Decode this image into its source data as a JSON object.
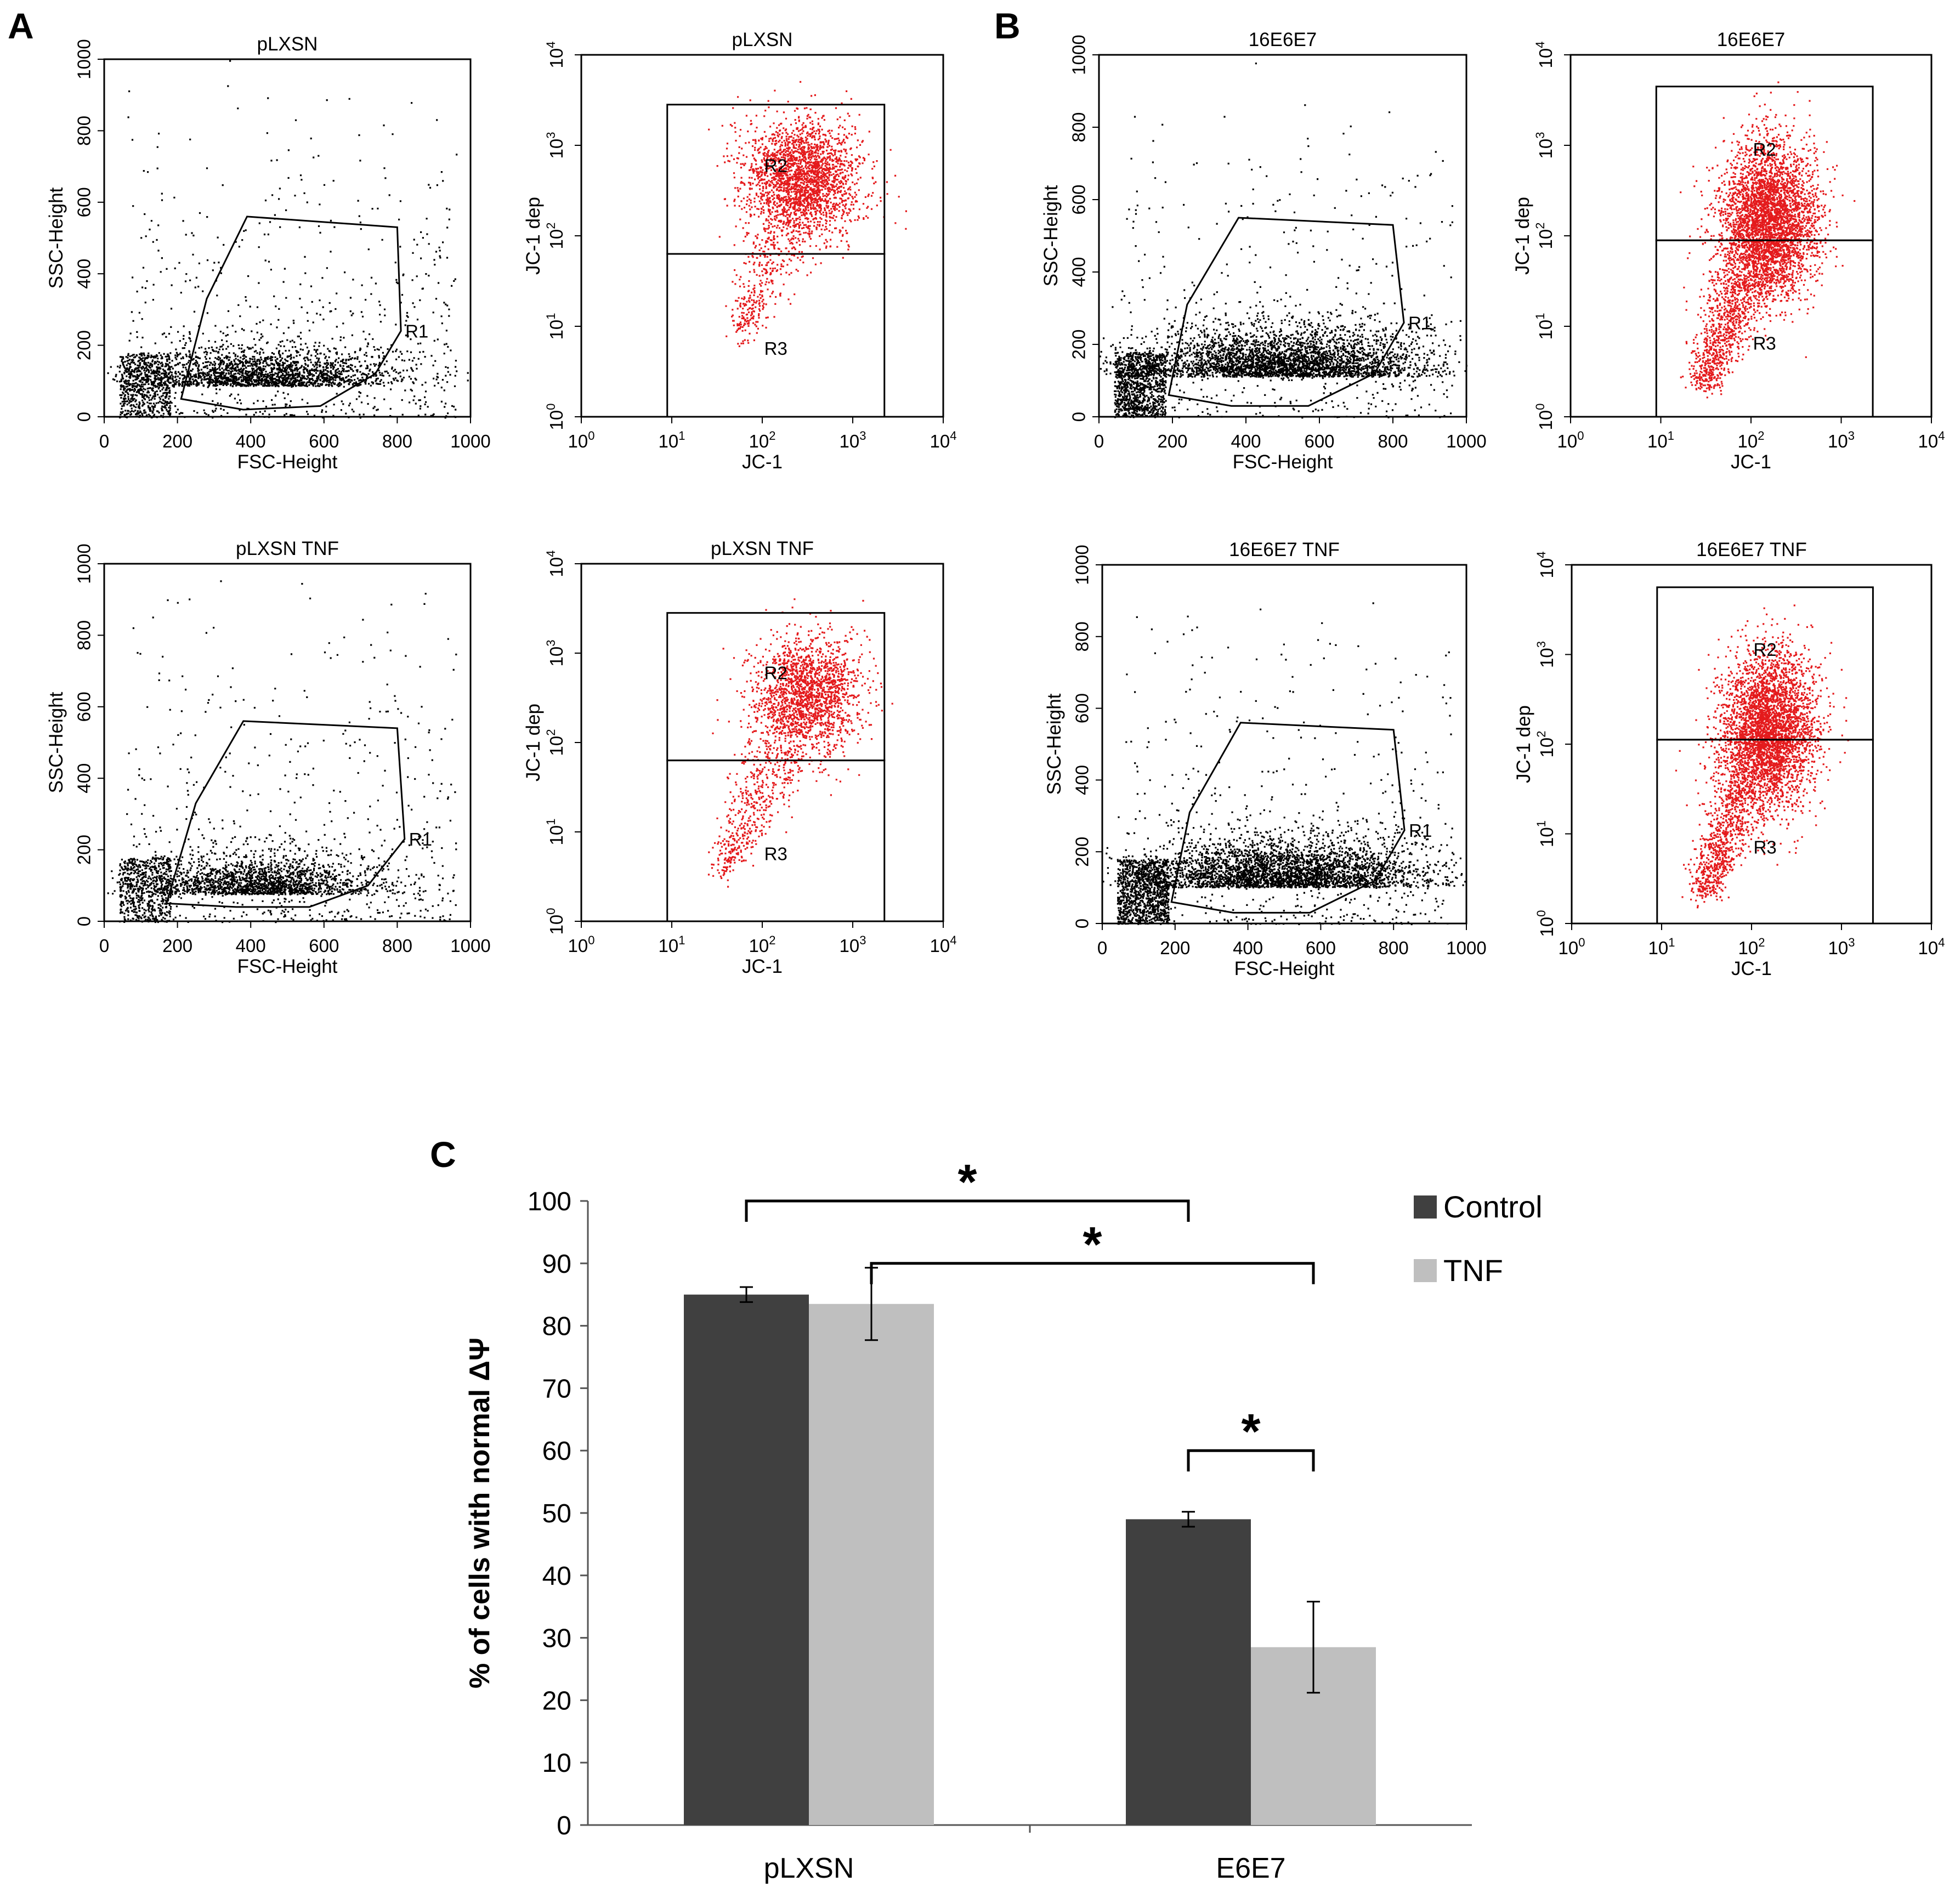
{
  "panels": {
    "A": {
      "letter": "A"
    },
    "B": {
      "letter": "B"
    },
    "C": {
      "letter": "C"
    }
  },
  "colors": {
    "scatter_points": "#000000",
    "jc1_points": "#e41a1c",
    "control_bar": "#404040",
    "tnf_bar": "#bfbfbf",
    "axis": "#000000"
  },
  "chart_data": [
    {
      "id": "pLXSN-fsc",
      "panel": "A",
      "type": "scatter",
      "title": "pLXSN",
      "xlabel": "FSC-Height",
      "ylabel": "SSC-Height",
      "xlim": [
        0,
        1000
      ],
      "ylim": [
        0,
        1000
      ],
      "xticks": [
        "0",
        "200",
        "400",
        "600",
        "800",
        "1000"
      ],
      "yticks": [
        "0",
        "200",
        "400",
        "600",
        "800",
        "1000"
      ],
      "gate": {
        "name": "R1",
        "polygon": [
          [
            210,
            50
          ],
          [
            280,
            330
          ],
          [
            390,
            560
          ],
          [
            800,
            530
          ],
          [
            810,
            240
          ],
          [
            740,
            120
          ],
          [
            590,
            30
          ],
          [
            380,
            20
          ]
        ]
      },
      "cloud": {
        "x_center": 430,
        "y_center": 110,
        "x_spread": 170,
        "y_spread": 45,
        "dense_count": 2600,
        "scatter_count": 650
      }
    },
    {
      "id": "pLXSN-jc1",
      "panel": "A",
      "type": "scatter",
      "title": "pLXSN",
      "xlabel": "JC-1",
      "ylabel": "JC-1 dep",
      "xlim": [
        0,
        4
      ],
      "ylim": [
        0,
        4
      ],
      "xticks": [
        "10^0",
        "10^1",
        "10^2",
        "10^3",
        "10^4"
      ],
      "yticks": [
        "10^0",
        "10^1",
        "10^2",
        "10^3",
        "10^4"
      ],
      "regions": [
        {
          "name": "R2",
          "x": [
            0.95,
            3.35
          ],
          "y": [
            1.8,
            3.45
          ]
        },
        {
          "name": "R3",
          "x": [
            0.95,
            3.35
          ],
          "y": [
            0,
            1.8
          ]
        }
      ],
      "cloud": {
        "x_center": 2.45,
        "y_center": 2.65,
        "x_spread": 0.32,
        "y_spread": 0.32,
        "tail_to": [
          1.75,
          0.9
        ],
        "dense_count": 2200,
        "tail_count": 500
      }
    },
    {
      "id": "pLXSN-TNF-fsc",
      "panel": "A",
      "type": "scatter",
      "title": "pLXSN TNF",
      "xlabel": "FSC-Height",
      "ylabel": "SSC-Height",
      "xlim": [
        0,
        1000
      ],
      "ylim": [
        0,
        1000
      ],
      "xticks": [
        "0",
        "200",
        "400",
        "600",
        "800",
        "1000"
      ],
      "yticks": [
        "0",
        "200",
        "400",
        "600",
        "800",
        "1000"
      ],
      "gate": {
        "name": "R1",
        "polygon": [
          [
            170,
            50
          ],
          [
            250,
            330
          ],
          [
            380,
            560
          ],
          [
            800,
            540
          ],
          [
            820,
            230
          ],
          [
            720,
            100
          ],
          [
            560,
            40
          ],
          [
            360,
            40
          ]
        ]
      },
      "cloud": {
        "x_center": 420,
        "y_center": 100,
        "x_spread": 160,
        "y_spread": 45,
        "dense_count": 2300,
        "scatter_count": 600
      }
    },
    {
      "id": "pLXSN-TNF-jc1",
      "panel": "A",
      "type": "scatter",
      "title": "pLXSN TNF",
      "xlabel": "JC-1",
      "ylabel": "JC-1 dep",
      "xlim": [
        0,
        4
      ],
      "ylim": [
        0,
        4
      ],
      "xticks": [
        "10^0",
        "10^1",
        "10^2",
        "10^3",
        "10^4"
      ],
      "yticks": [
        "10^0",
        "10^1",
        "10^2",
        "10^3",
        "10^4"
      ],
      "regions": [
        {
          "name": "R2",
          "x": [
            0.95,
            3.35
          ],
          "y": [
            1.8,
            3.45
          ]
        },
        {
          "name": "R3",
          "x": [
            0.95,
            3.35
          ],
          "y": [
            0,
            1.8
          ]
        }
      ],
      "cloud": {
        "x_center": 2.5,
        "y_center": 2.55,
        "x_spread": 0.3,
        "y_spread": 0.32,
        "tail_to": [
          1.55,
          0.55
        ],
        "dense_count": 1700,
        "tail_count": 650
      }
    },
    {
      "id": "16E6E7-fsc",
      "panel": "B",
      "type": "scatter",
      "title": "16E6E7",
      "xlabel": "FSC-Height",
      "ylabel": "SSC-Height",
      "xlim": [
        0,
        1000
      ],
      "ylim": [
        0,
        1000
      ],
      "xticks": [
        "0",
        "200",
        "400",
        "600",
        "800",
        "1000"
      ],
      "yticks": [
        "0",
        "200",
        "400",
        "600",
        "800",
        "1000"
      ],
      "gate": {
        "name": "R1",
        "polygon": [
          [
            190,
            60
          ],
          [
            240,
            310
          ],
          [
            380,
            550
          ],
          [
            800,
            530
          ],
          [
            830,
            260
          ],
          [
            750,
            120
          ],
          [
            570,
            30
          ],
          [
            360,
            30
          ]
        ]
      },
      "cloud": {
        "x_center": 500,
        "y_center": 140,
        "x_spread": 190,
        "y_spread": 55,
        "dense_count": 4200,
        "scatter_count": 500
      }
    },
    {
      "id": "16E6E7-jc1",
      "panel": "B",
      "type": "scatter",
      "title": "16E6E7",
      "xlabel": "JC-1",
      "ylabel": "JC-1 dep",
      "xlim": [
        0,
        4
      ],
      "ylim": [
        0,
        4
      ],
      "xticks": [
        "10^0",
        "10^1",
        "10^2",
        "10^3",
        "10^4"
      ],
      "yticks": [
        "10^0",
        "10^1",
        "10^2",
        "10^3",
        "10^4"
      ],
      "regions": [
        {
          "name": "R2",
          "x": [
            0.95,
            3.35
          ],
          "y": [
            1.95,
            3.65
          ]
        },
        {
          "name": "R3",
          "x": [
            0.95,
            3.35
          ],
          "y": [
            0,
            1.95
          ]
        }
      ],
      "cloud": {
        "x_center": 2.2,
        "y_center": 2.2,
        "x_spread": 0.26,
        "y_spread": 0.42,
        "tail_to": [
          1.45,
          0.35
        ],
        "dense_count": 3400,
        "tail_count": 1300
      }
    },
    {
      "id": "16E6E7-TNF-fsc",
      "panel": "B",
      "type": "scatter",
      "title": "16E6E7 TNF",
      "xlabel": "FSC-Height",
      "ylabel": "SSC-Height",
      "xlim": [
        0,
        1000
      ],
      "ylim": [
        0,
        1000
      ],
      "xticks": [
        "0",
        "200",
        "400",
        "600",
        "800",
        "1000"
      ],
      "yticks": [
        "0",
        "200",
        "400",
        "600",
        "800",
        "1000"
      ],
      "gate": {
        "name": "R1",
        "polygon": [
          [
            190,
            60
          ],
          [
            240,
            310
          ],
          [
            380,
            560
          ],
          [
            800,
            540
          ],
          [
            830,
            260
          ],
          [
            750,
            120
          ],
          [
            570,
            30
          ],
          [
            360,
            30
          ]
        ]
      },
      "cloud": {
        "x_center": 500,
        "y_center": 130,
        "x_spread": 190,
        "y_spread": 55,
        "dense_count": 4200,
        "scatter_count": 550
      }
    },
    {
      "id": "16E6E7-TNF-jc1",
      "panel": "B",
      "type": "scatter",
      "title": "16E6E7 TNF",
      "xlabel": "JC-1",
      "ylabel": "JC-1 dep",
      "xlim": [
        0,
        4
      ],
      "ylim": [
        0,
        4
      ],
      "xticks": [
        "10^0",
        "10^1",
        "10^2",
        "10^3",
        "10^4"
      ],
      "yticks": [
        "10^0",
        "10^1",
        "10^2",
        "10^3",
        "10^4"
      ],
      "regions": [
        {
          "name": "R2",
          "x": [
            0.95,
            3.35
          ],
          "y": [
            2.05,
            3.75
          ]
        },
        {
          "name": "R3",
          "x": [
            0.95,
            3.35
          ],
          "y": [
            0,
            2.05
          ]
        }
      ],
      "cloud": {
        "x_center": 2.2,
        "y_center": 2.2,
        "x_spread": 0.26,
        "y_spread": 0.42,
        "tail_to": [
          1.45,
          0.35
        ],
        "dense_count": 3200,
        "tail_count": 1300
      }
    },
    {
      "id": "membrane-potential-bars",
      "panel": "C",
      "type": "bar",
      "title": "",
      "xlabel": "",
      "ylabel": "% of cells with normal ΔΨ",
      "ylim": [
        0,
        100
      ],
      "yticks": [
        "0",
        "10",
        "20",
        "30",
        "40",
        "50",
        "60",
        "70",
        "80",
        "90",
        "100"
      ],
      "categories": [
        "pLXSN",
        "E6E7"
      ],
      "series": [
        {
          "name": "Control",
          "color": "#404040",
          "values": [
            85,
            49
          ],
          "errors": [
            1.2,
            1.2
          ]
        },
        {
          "name": "TNF",
          "color": "#bfbfbf",
          "values": [
            83.5,
            28.5
          ],
          "errors": [
            5.8,
            7.3
          ]
        }
      ],
      "legend": {
        "position": "top-right",
        "entries": [
          "Control",
          "TNF"
        ]
      },
      "significance": [
        {
          "label": "*",
          "from": {
            "category": 0,
            "series": 0
          },
          "to": {
            "category": 1,
            "series": 0
          }
        },
        {
          "label": "*",
          "from": {
            "category": 0,
            "series": 1
          },
          "to": {
            "category": 1,
            "series": 1
          }
        },
        {
          "label": "*",
          "from": {
            "category": 1,
            "series": 0
          },
          "to": {
            "category": 1,
            "series": 1
          }
        }
      ]
    }
  ]
}
